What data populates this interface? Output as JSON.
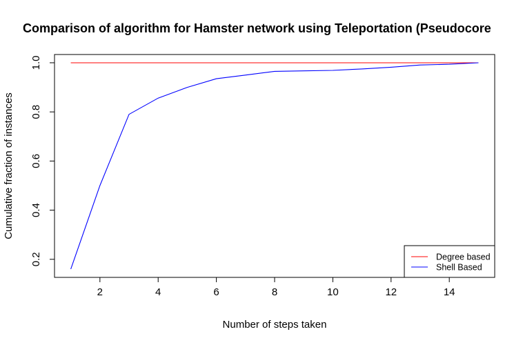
{
  "chart_data": {
    "type": "line",
    "title": "Comparison of algorithm for Hamster network using Teleportation (Pseudocore",
    "xlabel": "Number of steps taken",
    "ylabel": "Cumulative fraction of instances",
    "xlim": [
      1,
      15
    ],
    "ylim": [
      0.16,
      1.0
    ],
    "xticks": [
      2,
      4,
      6,
      8,
      10,
      12,
      14
    ],
    "yticks": [
      0.2,
      0.4,
      0.6,
      0.8,
      1.0
    ],
    "ytick_labels": [
      "0.2",
      "0.4",
      "0.6",
      "0.8",
      "1.0"
    ],
    "grid": false,
    "legend_position": "bottom-right",
    "series": [
      {
        "name": "Degree based",
        "color": "#ff0000",
        "x": [
          1,
          15
        ],
        "y": [
          1.0,
          1.0
        ]
      },
      {
        "name": "Shell Based",
        "color": "#0000ff",
        "x": [
          1,
          2,
          3,
          4,
          5,
          6,
          7,
          8,
          9,
          10,
          11,
          12,
          13,
          14,
          15
        ],
        "y": [
          0.16,
          0.5,
          0.79,
          0.856,
          0.9,
          0.935,
          0.95,
          0.965,
          0.967,
          0.969,
          0.975,
          0.982,
          0.991,
          0.994,
          1.0
        ]
      }
    ]
  }
}
